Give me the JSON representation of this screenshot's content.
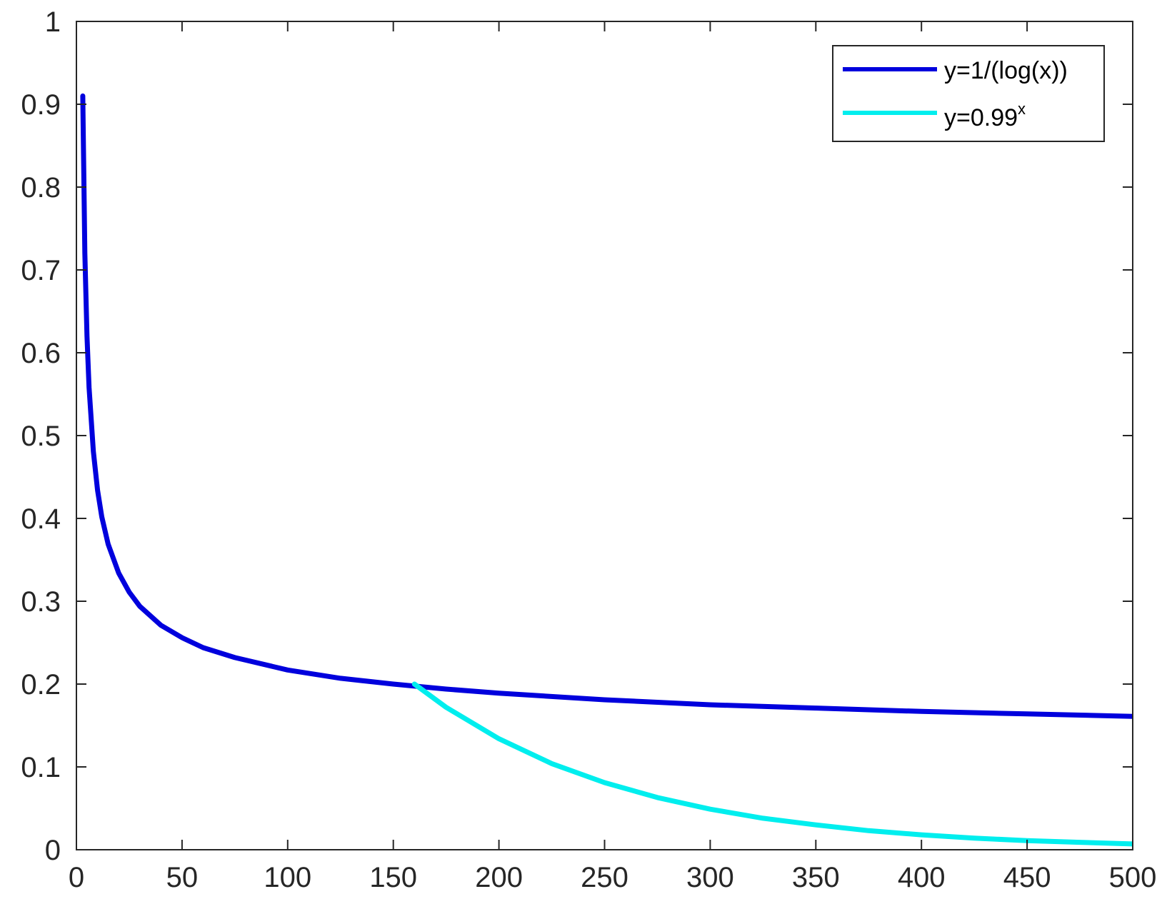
{
  "chart_data": {
    "type": "line",
    "title": "",
    "xlabel": "",
    "ylabel": "",
    "xlim": [
      0,
      500
    ],
    "ylim": [
      0,
      1
    ],
    "grid": false,
    "legend_position": "top-right",
    "x_ticks": [
      "0",
      "50",
      "100",
      "150",
      "200",
      "250",
      "300",
      "350",
      "400",
      "450",
      "500"
    ],
    "y_ticks": [
      "0",
      "0.1",
      "0.2",
      "0.3",
      "0.4",
      "0.5",
      "0.6",
      "0.7",
      "0.8",
      "0.9",
      "1"
    ],
    "series": [
      {
        "name": "y=1/(log(x))",
        "legend_base": "y=1/(log(x))",
        "legend_sup": "",
        "color": "#0000dd",
        "x": [
          3,
          4,
          5,
          6,
          8,
          10,
          12,
          15,
          20,
          25,
          30,
          40,
          50,
          60,
          75,
          100,
          125,
          150,
          175,
          200,
          250,
          300,
          350,
          400,
          450,
          500
        ],
        "y": [
          0.91,
          0.72,
          0.62,
          0.558,
          0.481,
          0.434,
          0.402,
          0.369,
          0.334,
          0.311,
          0.294,
          0.271,
          0.256,
          0.244,
          0.232,
          0.217,
          0.207,
          0.2,
          0.194,
          0.189,
          0.181,
          0.175,
          0.171,
          0.167,
          0.164,
          0.161
        ]
      },
      {
        "name": "y=0.99^x",
        "legend_base": "y=0.99",
        "legend_sup": "x",
        "color": "#00eeee",
        "x": [
          160,
          175,
          200,
          225,
          250,
          275,
          300,
          325,
          350,
          375,
          400,
          425,
          450,
          475,
          500
        ],
        "y": [
          0.2,
          0.172,
          0.134,
          0.104,
          0.081,
          0.063,
          0.049,
          0.038,
          0.03,
          0.023,
          0.018,
          0.014,
          0.011,
          0.009,
          0.007
        ]
      }
    ]
  }
}
